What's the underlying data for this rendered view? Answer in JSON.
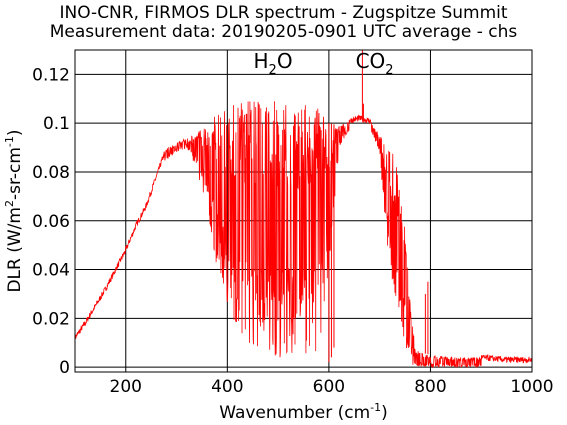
{
  "chart_data": {
    "type": "line",
    "title": "INO-CNR, FIRMOS DLR spectrum - Zugspitze Summit",
    "subtitle": "Measurement data: 20190205-0901 UTC average - chs",
    "xlabel": {
      "main": "Wavenumber (cm",
      "sup": "-1",
      "close": ")"
    },
    "ylabel": {
      "p1": "DLR (W/m",
      "s1": "2",
      "p2": "-sr-cm",
      "s2": "-1",
      "p3": ")"
    },
    "xlim": [
      100,
      1000
    ],
    "ylim": [
      -0.002,
      0.13
    ],
    "xticks": [
      200,
      400,
      600,
      800,
      1000
    ],
    "yticks": [
      0,
      0.02,
      0.04,
      0.06,
      0.08,
      0.1,
      0.12
    ],
    "ytick_labels": [
      "0",
      "0.02",
      "0.04",
      "0.06",
      "0.08",
      "0.1",
      "0.12"
    ],
    "grid": true,
    "annotations": [
      {
        "base": "H",
        "sub": "2",
        "tail": "O",
        "x": 490,
        "y": 0.125
      },
      {
        "base": "CO",
        "sub": "2",
        "tail": "",
        "x": 690,
        "y": 0.125
      }
    ],
    "series": [
      {
        "color": "#ff0000",
        "envelope": {
          "x": [
            100,
            120,
            140,
            160,
            180,
            200,
            220,
            240,
            260,
            280,
            300,
            320,
            340,
            360,
            380,
            400,
            420,
            440,
            460,
            480,
            500,
            520,
            540,
            560,
            580,
            600,
            620,
            640,
            660,
            680,
            700,
            710,
            720,
            730,
            740,
            750,
            760,
            770,
            780,
            800,
            850,
            900,
            950,
            1000
          ],
          "upper": [
            0.012,
            0.018,
            0.025,
            0.032,
            0.04,
            0.048,
            0.058,
            0.066,
            0.078,
            0.09,
            0.092,
            0.094,
            0.096,
            0.102,
            0.106,
            0.107,
            0.108,
            0.109,
            0.109,
            0.109,
            0.109,
            0.109,
            0.108,
            0.108,
            0.106,
            0.1,
            0.099,
            0.101,
            0.102,
            0.101,
            0.096,
            0.092,
            0.09,
            0.086,
            0.078,
            0.06,
            0.03,
            0.008,
            0.006,
            0.005,
            0.004,
            0.004,
            0.003,
            0.003
          ],
          "lower": [
            0.012,
            0.018,
            0.025,
            0.032,
            0.04,
            0.048,
            0.058,
            0.066,
            0.078,
            0.085,
            0.088,
            0.09,
            0.08,
            0.065,
            0.04,
            0.025,
            0.015,
            0.01,
            0.007,
            0.004,
            0.004,
            0.004,
            0.006,
            0.005,
            0.006,
            0.04,
            0.09,
            0.097,
            0.1,
            0.098,
            0.088,
            0.06,
            0.04,
            0.03,
            0.02,
            0.01,
            0.002,
            0.0,
            0.0,
            0.0,
            0.0,
            0.0,
            0.0,
            0.0
          ]
        },
        "spikes": [
          {
            "x": 666,
            "y": 0.13
          },
          {
            "x": 668,
            "y": 0.108
          },
          {
            "x": 600,
            "y": 0.002
          },
          {
            "x": 605,
            "y": 0.004
          },
          {
            "x": 610,
            "y": 0.008
          },
          {
            "x": 790,
            "y": 0.03
          },
          {
            "x": 795,
            "y": 0.035
          }
        ]
      }
    ]
  }
}
